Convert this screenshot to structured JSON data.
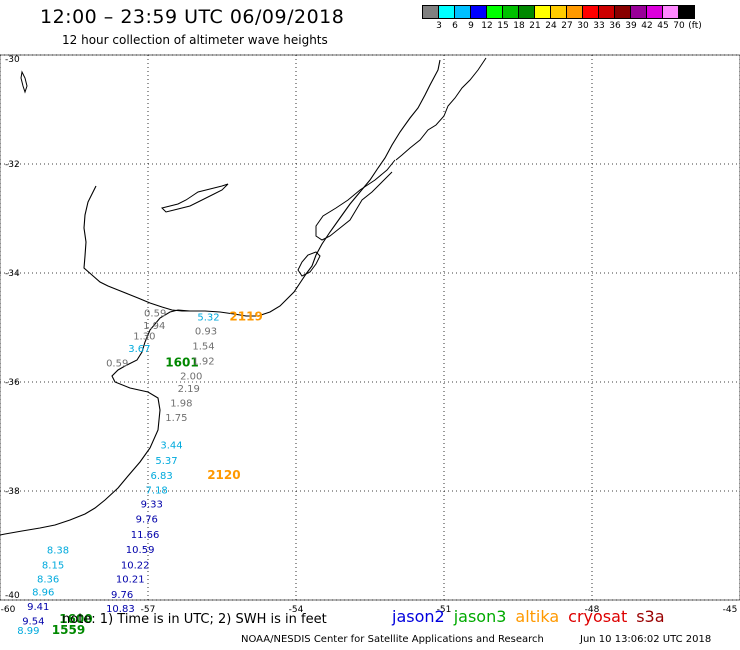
{
  "title": "12:00 – 23:59 UTC 06/09/2018",
  "subtitle": "12 hour collection of altimeter wave heights",
  "colorbar": {
    "colors": [
      "#808080",
      "#00ffff",
      "#00c0ff",
      "#0000ff",
      "#00ff00",
      "#00c000",
      "#008800",
      "#ffff00",
      "#ffcc00",
      "#ff9900",
      "#ff0000",
      "#cc0000",
      "#880000",
      "#990099",
      "#dd00dd",
      "#ff88ff",
      "#000000"
    ],
    "labels": [
      "3",
      "6",
      "9",
      "12",
      "15",
      "18",
      "21",
      "24",
      "27",
      "30",
      "33",
      "36",
      "39",
      "42",
      "45",
      "70",
      "(ft)"
    ]
  },
  "map_data": {
    "lat_range": [
      -40,
      -30
    ],
    "lon_range": [
      -60,
      -45
    ],
    "lat_ticks": [
      "-30",
      "-32",
      "-34",
      "-36",
      "-38",
      "-40"
    ],
    "lon_ticks": [
      "-60",
      "-57",
      "-54",
      "-51",
      "-48",
      "-45"
    ],
    "grid": "dotted",
    "satellite_colors": {
      "jason2": "#0000aa",
      "jason3": "#008800",
      "altika": "#ff9900",
      "cryosat": "#cc0000",
      "s3a": "#880000",
      "other": "#707070",
      "cyan": "#00aadd"
    },
    "observations": [
      {
        "text": "0.59",
        "lon": -57.08,
        "lat": -34.8,
        "sat": "other"
      },
      {
        "text": "5.32",
        "lon": -56.0,
        "lat": -34.87,
        "sat": "cyan"
      },
      {
        "text": "2119",
        "lon": -55.35,
        "lat": -34.87,
        "sat": "altika"
      },
      {
        "text": "1.94",
        "lon": -57.1,
        "lat": -35.03,
        "sat": "other"
      },
      {
        "text": "0.93",
        "lon": -56.05,
        "lat": -35.13,
        "sat": "other"
      },
      {
        "text": "1.30",
        "lon": -57.3,
        "lat": -35.22,
        "sat": "other"
      },
      {
        "text": "1.54",
        "lon": -56.1,
        "lat": -35.4,
        "sat": "other"
      },
      {
        "text": "3.67",
        "lon": -57.4,
        "lat": -35.45,
        "sat": "cyan"
      },
      {
        "text": "0.59",
        "lon": -57.85,
        "lat": -35.72,
        "sat": "other"
      },
      {
        "text": "1601",
        "lon": -56.65,
        "lat": -35.72,
        "sat": "jason3"
      },
      {
        "text": "1.92",
        "lon": -56.1,
        "lat": -35.68,
        "sat": "other"
      },
      {
        "text": "2.00",
        "lon": -56.35,
        "lat": -35.95,
        "sat": "other"
      },
      {
        "text": "2.19",
        "lon": -56.4,
        "lat": -36.18,
        "sat": "other"
      },
      {
        "text": "1.98",
        "lon": -56.55,
        "lat": -36.45,
        "sat": "other"
      },
      {
        "text": "1.75",
        "lon": -56.65,
        "lat": -36.72,
        "sat": "other"
      },
      {
        "text": "3.44",
        "lon": -56.75,
        "lat": -37.22,
        "sat": "cyan"
      },
      {
        "text": "5.37",
        "lon": -56.85,
        "lat": -37.5,
        "sat": "cyan"
      },
      {
        "text": "6.83",
        "lon": -56.95,
        "lat": -37.78,
        "sat": "cyan"
      },
      {
        "text": "2120",
        "lon": -55.8,
        "lat": -37.78,
        "sat": "altika"
      },
      {
        "text": "7.18",
        "lon": -57.05,
        "lat": -38.05,
        "sat": "cyan"
      },
      {
        "text": "9.33",
        "lon": -57.15,
        "lat": -38.3,
        "sat": "jason2"
      },
      {
        "text": "9.76",
        "lon": -57.25,
        "lat": -38.58,
        "sat": "jason2"
      },
      {
        "text": "11.66",
        "lon": -57.35,
        "lat": -38.86,
        "sat": "jason2"
      },
      {
        "text": "10.59",
        "lon": -57.45,
        "lat": -39.14,
        "sat": "jason2"
      },
      {
        "text": "10.22",
        "lon": -57.55,
        "lat": -39.42,
        "sat": "jason2"
      },
      {
        "text": "10.21",
        "lon": -57.65,
        "lat": -39.68,
        "sat": "jason2"
      },
      {
        "text": "9.76",
        "lon": -57.75,
        "lat": -39.96,
        "sat": "jason2"
      },
      {
        "text": "10.83",
        "lon": -57.85,
        "lat": -40.22,
        "sat": "jason2"
      },
      {
        "text": "8.38",
        "lon": -59.05,
        "lat": -39.15,
        "sat": "cyan"
      },
      {
        "text": "8.15",
        "lon": -59.15,
        "lat": -39.42,
        "sat": "cyan"
      },
      {
        "text": "8.36",
        "lon": -59.25,
        "lat": -39.68,
        "sat": "cyan"
      },
      {
        "text": "8.96",
        "lon": -59.35,
        "lat": -39.92,
        "sat": "cyan"
      },
      {
        "text": "9.41",
        "lon": -59.45,
        "lat": -40.18,
        "sat": "jason2"
      },
      {
        "text": "9.54",
        "lon": -59.55,
        "lat": -40.45,
        "sat": "jason2"
      },
      {
        "text": "8.99",
        "lon": -59.65,
        "lat": -40.62,
        "sat": "cyan"
      },
      {
        "text": "1600",
        "lon": -58.8,
        "lat": -40.42,
        "sat": "jason3"
      },
      {
        "text": "1559",
        "lon": -58.95,
        "lat": -40.62,
        "sat": "jason3"
      }
    ]
  },
  "note": "note:  1) Time is in UTC; 2) SWH is in feet",
  "legend": [
    {
      "name": "jason2",
      "color": "#0000dd"
    },
    {
      "name": "jason3",
      "color": "#00aa00"
    },
    {
      "name": "altika",
      "color": "#ff9900"
    },
    {
      "name": "cryosat",
      "color": "#dd0000"
    },
    {
      "name": "s3a",
      "color": "#990000"
    }
  ],
  "credit": "NOAA/NESDIS Center for Satellite Applications and Research",
  "timestamp": "Jun 10 13:06:02 UTC 2018"
}
